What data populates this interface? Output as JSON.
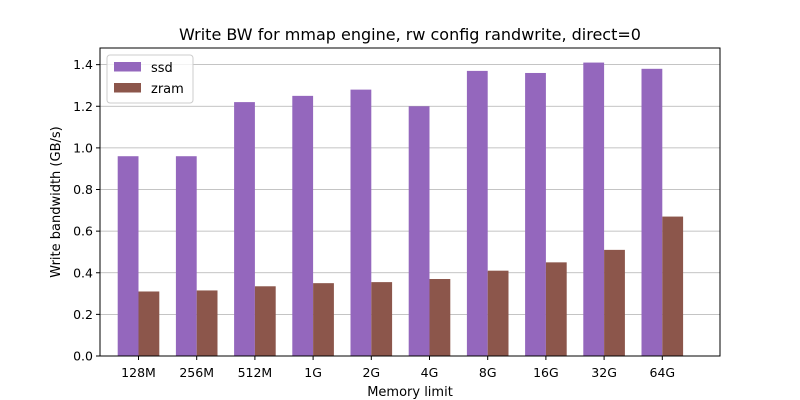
{
  "chart_data": {
    "type": "bar",
    "title": "Write BW for mmap engine, rw config randwrite, direct=0",
    "xlabel": "Memory limit",
    "ylabel": "Write bandwidth (GB/s)",
    "categories": [
      "128M",
      "256M",
      "512M",
      "1G",
      "2G",
      "4G",
      "8G",
      "16G",
      "32G",
      "64G"
    ],
    "series": [
      {
        "name": "ssd",
        "color": "#9467bd",
        "values": [
          0.96,
          0.96,
          1.22,
          1.25,
          1.28,
          1.2,
          1.37,
          1.36,
          1.41,
          1.38
        ]
      },
      {
        "name": "zram",
        "color": "#8c564b",
        "values": [
          0.31,
          0.315,
          0.335,
          0.35,
          0.355,
          0.37,
          0.41,
          0.45,
          0.51,
          0.67
        ]
      }
    ],
    "ylim": [
      0,
      1.48
    ],
    "yticks": [
      0.0,
      0.2,
      0.4,
      0.6,
      0.8,
      1.0,
      1.2,
      1.4
    ],
    "ytick_labels": [
      "0.0",
      "0.2",
      "0.4",
      "0.6",
      "0.8",
      "1.0",
      "1.2",
      "1.4"
    ],
    "grid": "y",
    "legend_position": "top-left"
  }
}
